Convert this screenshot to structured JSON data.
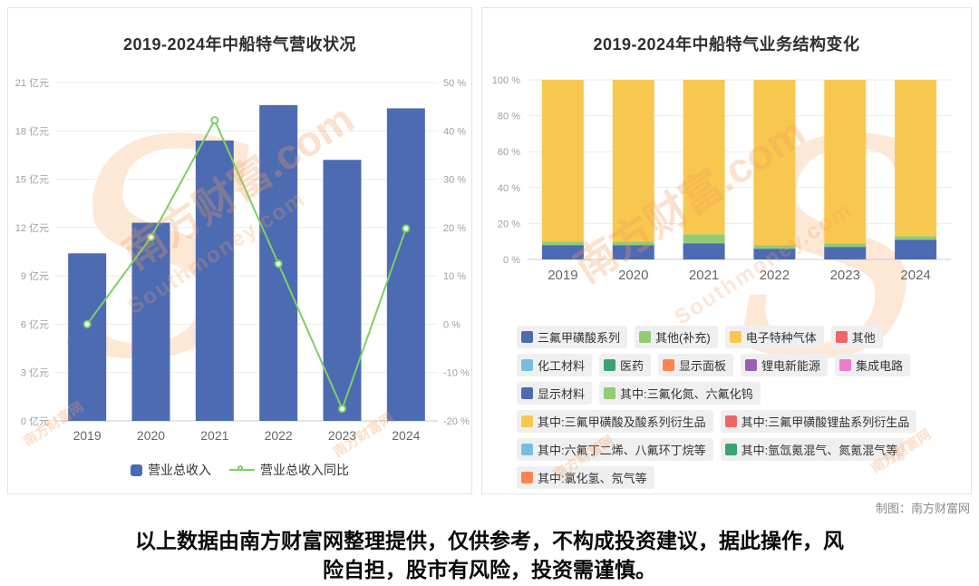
{
  "page": {
    "credit": "制图：南方财富网",
    "disclaimer": "以上数据由南方财富网整理提供，仅供参考，不构成投资建议，据此操作，风险自担，股市有风险，投资需谨慎。",
    "watermark": {
      "cn": "南方财富.com",
      "en": "Southmoney.com",
      "small": "南方财富网",
      "logo": "S"
    }
  },
  "colors": {
    "bar_blue": "#4d6bb3",
    "line_green": "#7ecf63",
    "yellow": "#f8c74f",
    "green": "#91cc75",
    "red": "#ee6666",
    "light_blue": "#73c0de",
    "teal": "#3ba272",
    "orange": "#fc8452",
    "purple": "#9a60b4",
    "pink": "#ea7ccc",
    "grid": "#ebebeb",
    "axis_line": "#cccccc",
    "tick_text": "#9aa0a6",
    "watermark": "#f39d5c"
  },
  "chart_data": [
    {
      "id": "revenue",
      "type": "bar+line",
      "title": "2019-2024年中船特气营收状况",
      "categories": [
        "2019",
        "2020",
        "2021",
        "2022",
        "2023",
        "2024"
      ],
      "series": [
        {
          "name": "营业总收入",
          "type": "bar",
          "axis": "left",
          "unit": "亿元",
          "values": [
            10.4,
            12.3,
            17.4,
            19.6,
            16.2,
            19.4
          ],
          "color": "#4d6bb3"
        },
        {
          "name": "营业总收入同比",
          "type": "line",
          "axis": "right",
          "unit": "%",
          "values": [
            0,
            18,
            42.2,
            12.5,
            -17.5,
            19.8
          ],
          "color": "#7ecf63"
        }
      ],
      "left_axis": {
        "min": 0,
        "max": 21,
        "step": 3,
        "unit": "亿元"
      },
      "right_axis": {
        "min": -20,
        "max": 50,
        "step": 10,
        "unit": "%"
      },
      "grid": true,
      "legend_position": "bottom"
    },
    {
      "id": "structure",
      "type": "stacked-bar-percent",
      "title": "2019-2024年中船特气业务结构变化",
      "categories": [
        "2019",
        "2020",
        "2021",
        "2022",
        "2023",
        "2024"
      ],
      "series": [
        {
          "name": "三氟甲磺酸系列",
          "values": [
            8,
            8,
            9,
            6,
            7,
            11
          ],
          "color": "#4d6bb3"
        },
        {
          "name": "其他(补充)",
          "values": [
            2,
            2,
            5,
            2,
            2,
            2
          ],
          "color": "#91cc75"
        },
        {
          "name": "电子特种气体",
          "values": [
            90,
            90,
            86,
            92,
            91,
            87
          ],
          "color": "#f8c74f"
        }
      ],
      "y_axis": {
        "min": 0,
        "max": 100,
        "step": 20,
        "unit": "%"
      },
      "grid": true,
      "legend_rows": [
        [
          {
            "label": "三氟甲磺酸系列",
            "color": "#4d6bb3"
          },
          {
            "label": "其他(补充)",
            "color": "#91cc75"
          },
          {
            "label": "电子特种气体",
            "color": "#f8c74f"
          },
          {
            "label": "其他",
            "color": "#ee6666"
          }
        ],
        [
          {
            "label": "化工材料",
            "color": "#73c0de"
          },
          {
            "label": "医药",
            "color": "#3ba272"
          },
          {
            "label": "显示面板",
            "color": "#fc8452"
          },
          {
            "label": "锂电新能源",
            "color": "#9a60b4"
          },
          {
            "label": "集成电路",
            "color": "#ea7ccc"
          }
        ],
        [
          {
            "label": "显示材料",
            "color": "#4d6bb3"
          },
          {
            "label": "其中:三氟化氮、六氟化钨",
            "color": "#91cc75"
          }
        ],
        [
          {
            "label": "其中:三氟甲磺酸及酸系列衍生品",
            "color": "#f8c74f"
          },
          {
            "label": "其中:三氟甲磺酸锂盐系列衍生品",
            "color": "#ee6666"
          }
        ],
        [
          {
            "label": "其中:六氟丁二烯、八氟环丁烷等",
            "color": "#73c0de"
          },
          {
            "label": "其中:氩氙氪混气、氮氪混气等",
            "color": "#3ba272"
          }
        ],
        [
          {
            "label": "其中:氯化氢、氖气等",
            "color": "#fc8452"
          }
        ]
      ]
    }
  ]
}
